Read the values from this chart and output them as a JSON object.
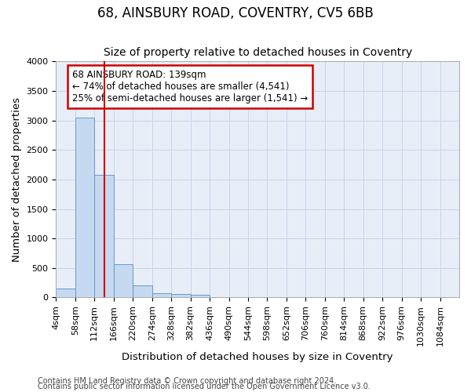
{
  "title": "68, AINSBURY ROAD, COVENTRY, CV5 6BB",
  "subtitle": "Size of property relative to detached houses in Coventry",
  "xlabel": "Distribution of detached houses by size in Coventry",
  "ylabel": "Number of detached properties",
  "bin_labels": [
    "4sqm",
    "58sqm",
    "112sqm",
    "166sqm",
    "220sqm",
    "274sqm",
    "328sqm",
    "382sqm",
    "436sqm",
    "490sqm",
    "544sqm",
    "598sqm",
    "652sqm",
    "706sqm",
    "760sqm",
    "814sqm",
    "868sqm",
    "922sqm",
    "976sqm",
    "1030sqm",
    "1084sqm"
  ],
  "bin_edges": [
    4,
    58,
    112,
    166,
    220,
    274,
    328,
    382,
    436,
    490,
    544,
    598,
    652,
    706,
    760,
    814,
    868,
    922,
    976,
    1030,
    1084
  ],
  "bar_heights": [
    150,
    3050,
    2080,
    560,
    210,
    70,
    60,
    50,
    0,
    0,
    0,
    0,
    0,
    0,
    0,
    0,
    0,
    0,
    0,
    0
  ],
  "bar_color": "#c5d9f0",
  "bar_edge_color": "#6699cc",
  "property_size": 139,
  "red_line_color": "#cc0000",
  "annotation_text": "68 AINSBURY ROAD: 139sqm\n← 74% of detached houses are smaller (4,541)\n25% of semi-detached houses are larger (1,541) →",
  "annotation_box_edgecolor": "#cc0000",
  "ylim": [
    0,
    4000
  ],
  "yticks": [
    0,
    500,
    1000,
    1500,
    2000,
    2500,
    3000,
    3500,
    4000
  ],
  "grid_color": "#c8d4e8",
  "bg_color": "#e8eef8",
  "footer_line1": "Contains HM Land Registry data © Crown copyright and database right 2024.",
  "footer_line2": "Contains public sector information licensed under the Open Government Licence v3.0.",
  "title_fontsize": 12,
  "subtitle_fontsize": 10,
  "axis_label_fontsize": 9.5,
  "tick_fontsize": 8,
  "annotation_fontsize": 8.5,
  "footer_fontsize": 7
}
